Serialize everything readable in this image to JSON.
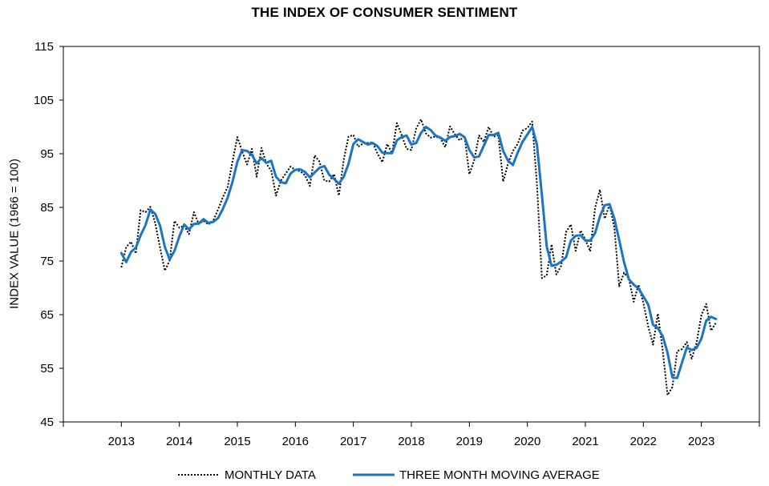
{
  "chart_data": {
    "type": "line",
    "title": "THE INDEX OF CONSUMER SENTIMENT",
    "ylabel": "INDEX VALUE (1966 = 100)",
    "xlabel": "",
    "ylim": [
      45,
      115
    ],
    "yticks": [
      45,
      55,
      65,
      75,
      85,
      95,
      105,
      115
    ],
    "xlim": [
      2012.0,
      2024.0
    ],
    "xticks": [
      "2013",
      "2014",
      "2015",
      "2016",
      "2017",
      "2018",
      "2019",
      "2020",
      "2021",
      "2022",
      "2023"
    ],
    "grid": false,
    "legend_position": "bottom",
    "series": [
      {
        "name": "MONTHLY DATA",
        "style": "dotted",
        "color": "#000000",
        "x_start": 2013.0,
        "x_step_months": 1,
        "values": [
          73.8,
          77.6,
          78.6,
          76.4,
          84.5,
          84.1,
          85.1,
          82.1,
          77.5,
          73.2,
          75.1,
          82.5,
          81.2,
          81.6,
          80.0,
          84.1,
          81.9,
          82.5,
          81.8,
          82.5,
          84.6,
          86.9,
          88.8,
          93.6,
          98.1,
          95.4,
          93.0,
          95.9,
          90.7,
          96.1,
          93.1,
          91.9,
          87.2,
          90.0,
          91.3,
          92.6,
          92.0,
          91.7,
          91.0,
          89.0,
          94.7,
          93.5,
          90.0,
          89.8,
          91.2,
          87.2,
          93.8,
          98.2,
          98.5,
          96.3,
          96.9,
          97.0,
          97.1,
          95.0,
          93.4,
          96.8,
          95.1,
          100.7,
          98.5,
          95.9,
          95.7,
          99.7,
          101.4,
          98.8,
          98.0,
          98.2,
          97.9,
          96.2,
          100.1,
          98.6,
          97.5,
          98.3,
          91.2,
          93.8,
          98.4,
          97.2,
          100.0,
          98.2,
          98.4,
          89.8,
          93.2,
          95.5,
          96.8,
          99.3,
          99.8,
          101.0,
          89.1,
          71.8,
          72.3,
          78.1,
          72.5,
          74.1,
          80.4,
          81.8,
          76.9,
          80.7,
          79.0,
          76.8,
          84.9,
          88.3,
          82.9,
          85.5,
          81.2,
          70.3,
          72.8,
          71.7,
          67.4,
          70.6,
          67.2,
          62.8,
          59.4,
          65.2,
          58.4,
          50.0,
          51.5,
          58.2,
          58.6,
          59.9,
          56.8,
          59.7,
          64.9,
          67.0,
          62.0,
          63.5
        ]
      },
      {
        "name": "THREE MONTH MOVING AVERAGE",
        "style": "solid",
        "color": "#1a74c7",
        "x_start": 2013.0,
        "x_step_months": 1,
        "values": [
          76.5,
          74.8,
          76.7,
          77.5,
          79.8,
          81.7,
          84.6,
          83.8,
          81.6,
          77.6,
          75.3,
          76.9,
          79.6,
          81.8,
          80.9,
          81.9,
          82.0,
          82.8,
          82.1,
          82.3,
          83.0,
          84.7,
          86.8,
          89.8,
          93.5,
          95.7,
          95.5,
          94.8,
          93.2,
          94.2,
          93.3,
          93.7,
          90.7,
          89.7,
          89.5,
          91.3,
          92.0,
          92.1,
          91.6,
          90.6,
          91.5,
          92.4,
          92.7,
          91.1,
          90.3,
          89.4,
          90.7,
          93.1,
          96.8,
          97.7,
          97.2,
          96.7,
          97.0,
          96.4,
          95.2,
          95.1,
          95.1,
          97.5,
          98.1,
          98.4,
          96.7,
          97.0,
          98.9,
          100.0,
          99.4,
          98.4,
          98.0,
          97.4,
          98.1,
          98.3,
          98.7,
          98.1,
          95.7,
          94.3,
          94.5,
          96.5,
          98.5,
          98.5,
          98.9,
          95.5,
          93.7,
          92.9,
          95.2,
          97.2,
          98.6,
          100.0,
          96.6,
          87.3,
          77.7,
          74.1,
          74.3,
          74.9,
          75.7,
          78.8,
          79.7,
          79.8,
          78.8,
          78.8,
          80.2,
          83.3,
          85.4,
          85.6,
          82.9,
          78.9,
          74.8,
          71.6,
          70.6,
          69.9,
          68.4,
          66.9,
          63.1,
          62.5,
          61.0,
          57.9,
          53.3,
          53.2,
          56.1,
          58.9,
          58.4,
          58.8,
          60.5,
          63.9,
          64.6,
          64.2
        ]
      }
    ]
  }
}
